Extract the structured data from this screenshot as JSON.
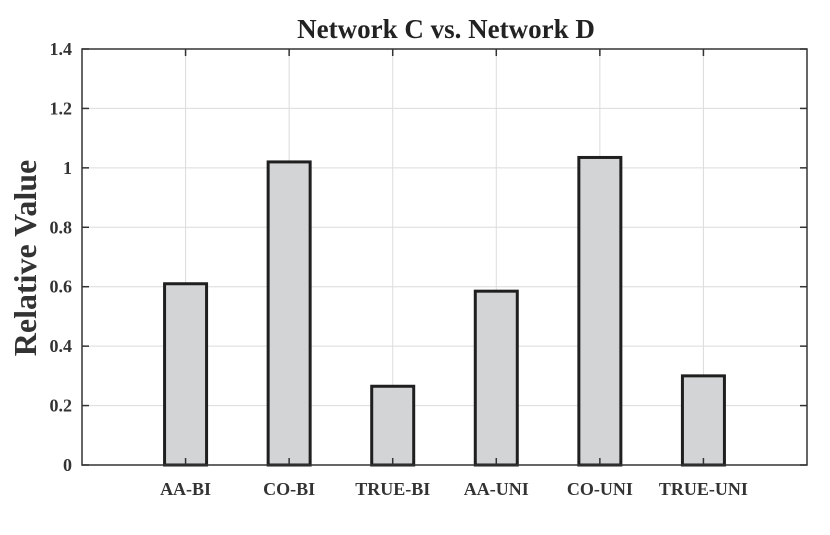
{
  "chart_data": {
    "type": "bar",
    "title": "Network C vs. Network D",
    "xlabel": "",
    "ylabel": "Relative Value",
    "categories": [
      "AA-BI",
      "CO-BI",
      "TRUE-BI",
      "AA-UNI",
      "CO-UNI",
      "TRUE-UNI"
    ],
    "values": [
      0.61,
      1.02,
      0.265,
      0.585,
      1.035,
      0.3
    ],
    "ylim": [
      0,
      1.4
    ],
    "yticks": [
      0,
      0.2,
      0.4,
      0.6,
      0.8,
      1,
      1.2,
      1.4
    ],
    "ytick_labels": [
      "0",
      "0.2",
      "0.4",
      "0.6",
      "0.8",
      "1",
      "1.2",
      "1.4"
    ],
    "grid": true,
    "legend": "none",
    "colors": {
      "bar_fill": "#d3d4d6",
      "bar_edge": "#1f1f1f",
      "grid": "#dcdcdc",
      "axis": "#333333"
    }
  }
}
